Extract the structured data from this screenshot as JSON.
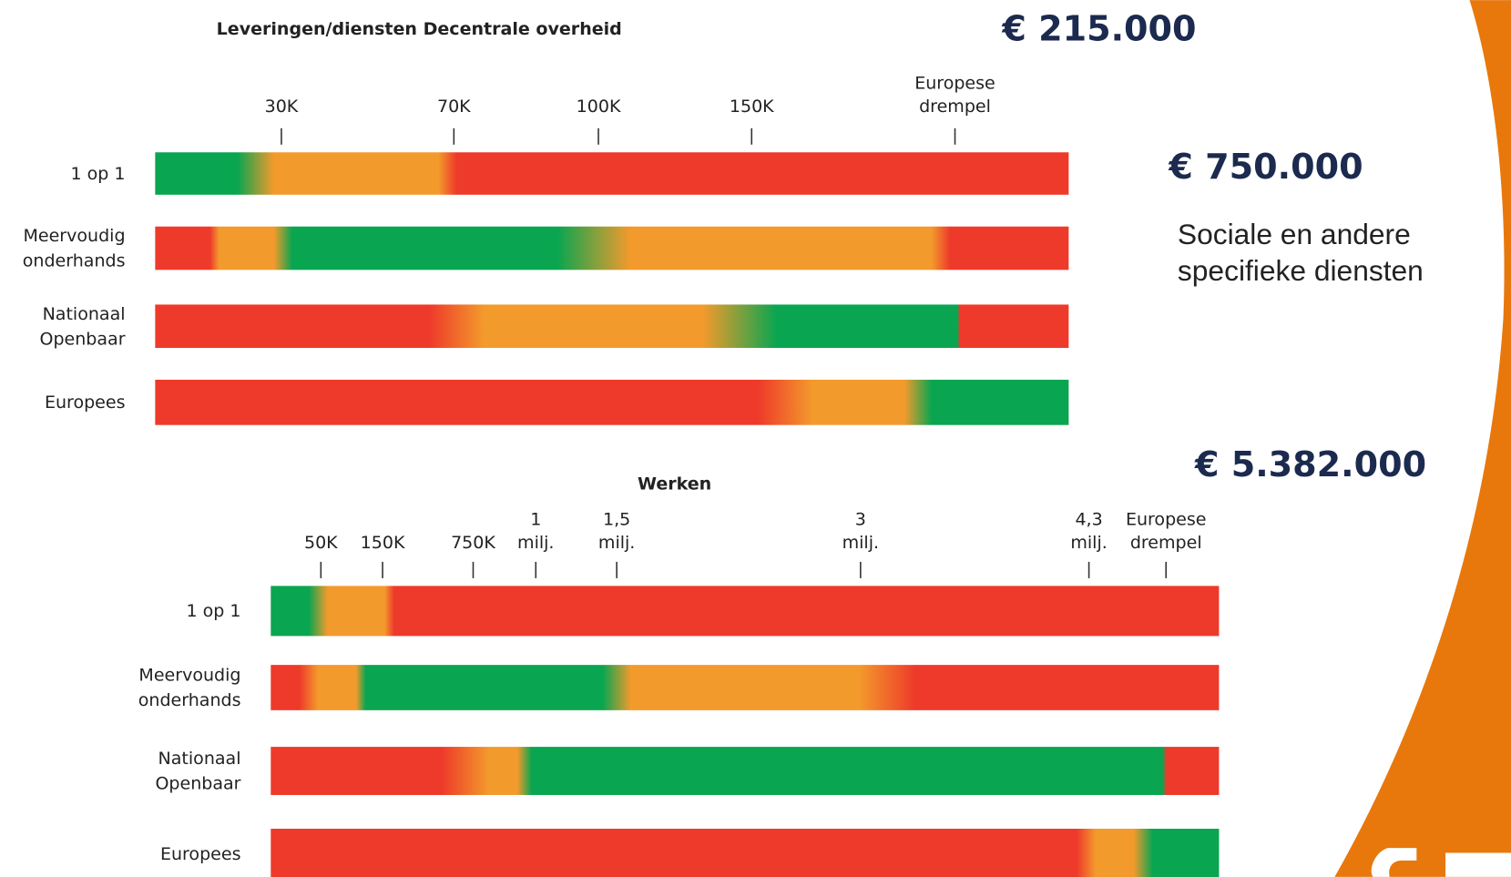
{
  "panels": [
    {
      "title": "Leveringen/diensten Decentrale overheid",
      "ticks": [
        "30K",
        "70K",
        "100K",
        "150K",
        "Europese drempel"
      ],
      "rows": [
        "1 op 1",
        "Meervoudig onderhands",
        "Nationaal Openbaar",
        "Europees"
      ]
    },
    {
      "title": "Werken",
      "ticks": [
        "50K",
        "150K",
        "750K",
        "1 milj.",
        "1,5 milj.",
        "3 milj.",
        "4,3 milj.",
        "Europese drempel"
      ],
      "rows": [
        "1 op 1",
        "Meervoudig onderhands",
        "Nationaal Openbaar",
        "Europees"
      ]
    }
  ],
  "side": {
    "threshold_1": "€ 215.000",
    "threshold_2": "€ 750.000",
    "note": "Sociale en andere specifieke diensten",
    "threshold_3": "€ 5.382.000"
  }
}
